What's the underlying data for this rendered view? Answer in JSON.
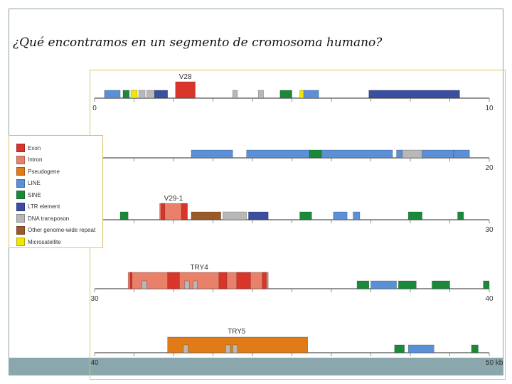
{
  "page": {
    "title": "¿Qué encontramos en un segmento de cromosoma humano?"
  },
  "colors": {
    "exon": "#d9352a",
    "intron": "#e8806a",
    "pseudogene": "#e07b17",
    "line": "#5b8fd6",
    "sine": "#1a8a3a",
    "ltr": "#3a4fa0",
    "dna_transposon": "#b8b8b8",
    "other_repeat": "#9a5a2a",
    "microsatellite": "#f2e600"
  },
  "legend": [
    {
      "key": "exon",
      "label": "Exon"
    },
    {
      "key": "intron",
      "label": "Intron"
    },
    {
      "key": "pseudogene",
      "label": "Pseudogene"
    },
    {
      "key": "line",
      "label": "LINE"
    },
    {
      "key": "sine",
      "label": "SINE"
    },
    {
      "key": "ltr",
      "label": "LTR element"
    },
    {
      "key": "dna_transposon",
      "label": "DNA transposon"
    },
    {
      "key": "other_repeat",
      "label": "Other genome-wide repeat"
    },
    {
      "key": "microsatellite",
      "label": "Microsatellite"
    }
  ],
  "tracks": [
    {
      "start": 0,
      "end": 10,
      "start_label": "0",
      "end_label": "10",
      "gene_labels": [
        {
          "text": "V28",
          "at": 2.3
        }
      ],
      "features": [
        {
          "type": "line",
          "from": 0.25,
          "to": 0.65
        },
        {
          "type": "sine",
          "from": 0.72,
          "to": 0.88
        },
        {
          "type": "microsatellite",
          "from": 0.92,
          "to": 1.08
        },
        {
          "type": "dna_transposon",
          "from": 1.12,
          "to": 1.28
        },
        {
          "type": "dna_transposon",
          "from": 1.32,
          "to": 1.52
        },
        {
          "type": "ltr",
          "from": 1.52,
          "to": 1.85
        },
        {
          "type": "exon",
          "from": 2.05,
          "to": 2.55
        },
        {
          "type": "dna_transposon",
          "from": 3.5,
          "to": 3.62
        },
        {
          "type": "dna_transposon",
          "from": 4.15,
          "to": 4.28
        },
        {
          "type": "sine",
          "from": 4.7,
          "to": 5.0
        },
        {
          "type": "microsatellite",
          "from": 5.2,
          "to": 5.3
        },
        {
          "type": "line",
          "from": 5.3,
          "to": 5.68
        },
        {
          "type": "ltr",
          "from": 6.95,
          "to": 9.25
        }
      ]
    },
    {
      "start": 10,
      "end": 20,
      "start_label": "",
      "end_label": "20",
      "gene_labels": [],
      "features": [
        {
          "type": "line",
          "from": 12.45,
          "to": 13.5
        },
        {
          "type": "line",
          "from": 13.85,
          "to": 15.45
        },
        {
          "type": "sine",
          "from": 15.45,
          "to": 15.75
        },
        {
          "type": "line",
          "from": 15.75,
          "to": 17.55
        },
        {
          "type": "line",
          "from": 17.65,
          "to": 17.8
        },
        {
          "type": "dna_transposon",
          "from": 17.8,
          "to": 18.3
        },
        {
          "type": "line",
          "from": 18.3,
          "to": 19.1
        },
        {
          "type": "line",
          "from": 19.1,
          "to": 19.5
        }
      ]
    },
    {
      "start": 20,
      "end": 30,
      "start_label": "",
      "end_label": "30",
      "gene_labels": [
        {
          "text": "V29-1",
          "at": 2.0
        }
      ],
      "features": [
        {
          "type": "sine",
          "from": 0.65,
          "to": 0.85
        },
        {
          "type": "intron",
          "from": 1.65,
          "to": 2.35
        },
        {
          "type": "exon",
          "from": 1.68,
          "to": 1.78
        },
        {
          "type": "exon",
          "from": 2.2,
          "to": 2.35
        },
        {
          "type": "other_repeat",
          "from": 2.45,
          "to": 3.2
        },
        {
          "type": "dna_transposon",
          "from": 3.25,
          "to": 3.85
        },
        {
          "type": "ltr",
          "from": 3.9,
          "to": 4.4
        },
        {
          "type": "sine",
          "from": 5.2,
          "to": 5.5
        },
        {
          "type": "line",
          "from": 6.05,
          "to": 6.4
        },
        {
          "type": "line",
          "from": 6.55,
          "to": 6.72
        },
        {
          "type": "sine",
          "from": 7.95,
          "to": 8.3
        },
        {
          "type": "sine",
          "from": 9.2,
          "to": 9.35
        }
      ]
    },
    {
      "start": 30,
      "end": 40,
      "start_label": "30",
      "end_label": "40",
      "gene_labels": [
        {
          "text": "TRY4",
          "at": 2.65
        }
      ],
      "features": [
        {
          "type": "intron",
          "from": 0.85,
          "to": 4.4
        },
        {
          "type": "exon",
          "from": 0.9,
          "to": 0.95
        },
        {
          "type": "exon",
          "from": 1.85,
          "to": 2.15
        },
        {
          "type": "exon",
          "from": 3.15,
          "to": 3.35
        },
        {
          "type": "exon",
          "from": 3.6,
          "to": 3.95
        },
        {
          "type": "exon",
          "from": 4.25,
          "to": 4.35
        },
        {
          "type": "dna_transposon",
          "from": 1.2,
          "to": 1.32
        },
        {
          "type": "dna_transposon",
          "from": 2.28,
          "to": 2.4
        },
        {
          "type": "dna_transposon",
          "from": 2.5,
          "to": 2.6
        },
        {
          "type": "sine",
          "from": 6.65,
          "to": 6.95
        },
        {
          "type": "line",
          "from": 7.0,
          "to": 7.65
        },
        {
          "type": "sine",
          "from": 7.7,
          "to": 8.15
        },
        {
          "type": "sine",
          "from": 8.55,
          "to": 9.0
        },
        {
          "type": "sine",
          "from": 9.85,
          "to": 10.0
        }
      ]
    },
    {
      "start": 40,
      "end": 50,
      "start_label": "40",
      "end_label": "50 kb",
      "gene_labels": [
        {
          "text": "TRY5",
          "at": 3.6
        }
      ],
      "features": [
        {
          "type": "pseudogene",
          "from": 1.85,
          "to": 5.4
        },
        {
          "type": "dna_transposon",
          "from": 2.25,
          "to": 2.37
        },
        {
          "type": "dna_transposon",
          "from": 3.32,
          "to": 3.44
        },
        {
          "type": "dna_transposon",
          "from": 3.5,
          "to": 3.62
        },
        {
          "type": "sine",
          "from": 7.6,
          "to": 7.85
        },
        {
          "type": "line",
          "from": 7.95,
          "to": 8.6
        },
        {
          "type": "sine",
          "from": 9.55,
          "to": 9.72
        }
      ]
    }
  ]
}
